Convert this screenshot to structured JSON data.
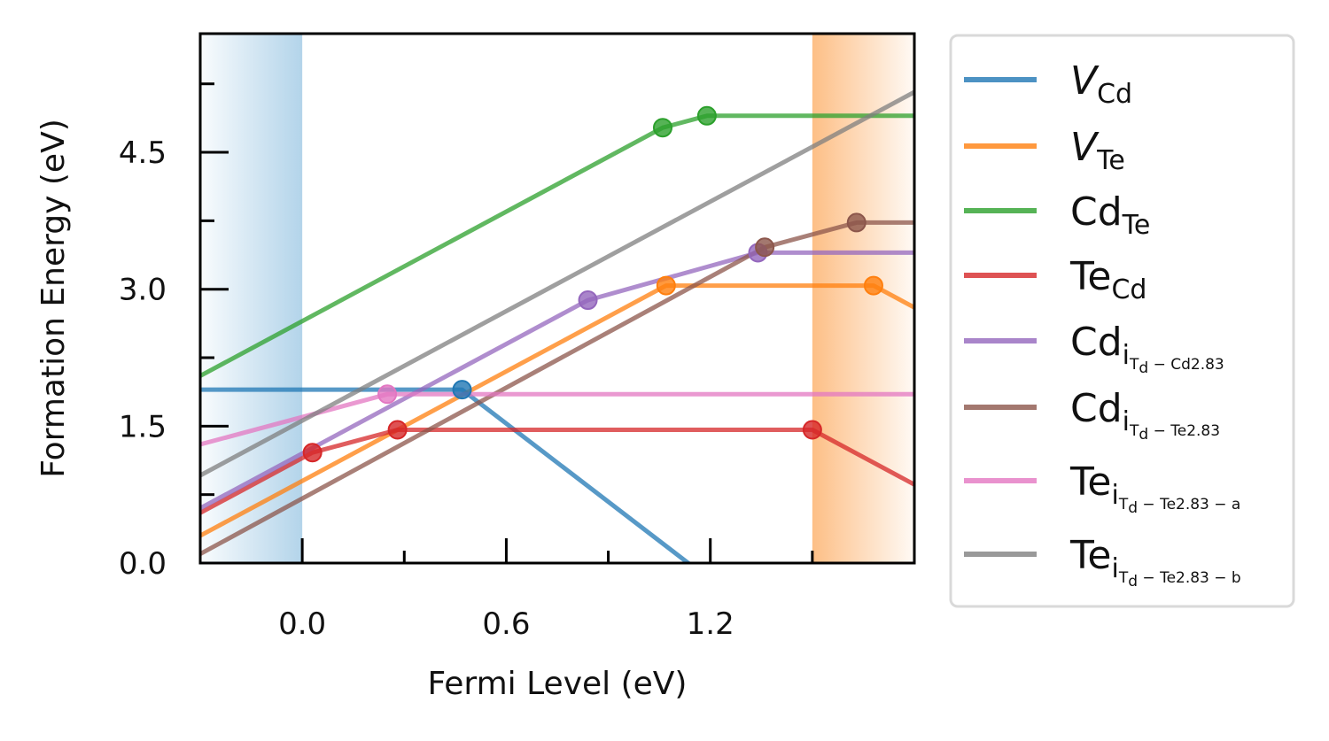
{
  "chart_data": {
    "type": "line",
    "xlabel": "Fermi Level (eV)",
    "ylabel": "Formation Energy (eV)",
    "xlim": [
      -0.3,
      1.8
    ],
    "ylim": [
      0.0,
      5.8
    ],
    "x_ticks": [
      {
        "value": 0.0,
        "label": "0.0"
      },
      {
        "value": 0.6,
        "label": "0.6"
      },
      {
        "value": 1.2,
        "label": "1.2"
      }
    ],
    "x_minor_ticks": [
      0.3,
      0.9,
      1.5
    ],
    "y_ticks": [
      {
        "value": 0.0,
        "label": "0.0"
      },
      {
        "value": 1.5,
        "label": "1.5"
      },
      {
        "value": 3.0,
        "label": "3.0"
      },
      {
        "value": 4.5,
        "label": "4.5"
      }
    ],
    "y_minor_ticks": [
      0.75,
      2.25,
      3.75,
      5.25
    ],
    "shaded_regions": [
      {
        "name": "valence-band",
        "x": [
          -0.3,
          0.0
        ],
        "color": "#b3d4ea",
        "fade": "left"
      },
      {
        "name": "conduction-band",
        "x": [
          1.5,
          1.8
        ],
        "color": "#fdbf86",
        "fade": "right"
      }
    ],
    "legend_position": "outside-right",
    "series": [
      {
        "name": {
          "main": "V",
          "italic": true,
          "sub": "Cd"
        },
        "color": "#1f77b4",
        "points": [
          [
            -0.3,
            1.9
          ],
          [
            0.47,
            1.9
          ],
          [
            1.8,
            -1.9
          ]
        ],
        "markers": [
          [
            0.47,
            1.9
          ]
        ]
      },
      {
        "name": {
          "main": "V",
          "italic": true,
          "sub": "Te"
        },
        "color": "#ff7f0e",
        "points": [
          [
            -0.3,
            0.3
          ],
          [
            1.07,
            3.04
          ],
          [
            1.68,
            3.04
          ],
          [
            1.8,
            2.8
          ]
        ],
        "markers": [
          [
            1.07,
            3.04
          ],
          [
            1.68,
            3.04
          ]
        ]
      },
      {
        "name": {
          "main": "Cd",
          "sub": "Te"
        },
        "color": "#2ca02c",
        "points": [
          [
            -0.3,
            2.05
          ],
          [
            1.06,
            4.77
          ],
          [
            1.19,
            4.9
          ],
          [
            1.8,
            4.9
          ]
        ],
        "markers": [
          [
            1.06,
            4.77
          ],
          [
            1.19,
            4.9
          ]
        ]
      },
      {
        "name": {
          "main": "Te",
          "sub": "Cd"
        },
        "color": "#d62728",
        "points": [
          [
            -0.3,
            0.55
          ],
          [
            0.03,
            1.21
          ],
          [
            0.28,
            1.46
          ],
          [
            1.5,
            1.46
          ],
          [
            1.8,
            0.86
          ]
        ],
        "markers": [
          [
            0.03,
            1.21
          ],
          [
            0.28,
            1.46
          ],
          [
            1.5,
            1.46
          ]
        ]
      },
      {
        "name": {
          "main": "Cd",
          "sub": "i",
          "sub2": "T",
          "sub3": "d",
          "tail": " − Cd2.83"
        },
        "color": "#9467bd",
        "points": [
          [
            -0.3,
            0.6
          ],
          [
            0.84,
            2.88
          ],
          [
            1.34,
            3.4
          ],
          [
            1.8,
            3.4
          ]
        ],
        "markers": [
          [
            0.84,
            2.88
          ],
          [
            1.34,
            3.4
          ]
        ]
      },
      {
        "name": {
          "main": "Cd",
          "sub": "i",
          "sub2": "T",
          "sub3": "d",
          "tail": " − Te2.83"
        },
        "color": "#8c564b",
        "points": [
          [
            -0.3,
            0.1
          ],
          [
            1.36,
            3.46
          ],
          [
            1.63,
            3.73
          ],
          [
            1.8,
            3.73
          ]
        ],
        "markers": [
          [
            1.36,
            3.46
          ],
          [
            1.63,
            3.73
          ]
        ]
      },
      {
        "name": {
          "main": "Te",
          "sub": "i",
          "sub2": "T",
          "sub3": "d",
          "tail": " − Te2.83 − a"
        },
        "color": "#e377c2",
        "points": [
          [
            -0.3,
            1.3
          ],
          [
            0.25,
            1.85
          ],
          [
            1.8,
            1.85
          ]
        ],
        "markers": [
          [
            0.25,
            1.85
          ]
        ]
      },
      {
        "name": {
          "main": "Te",
          "sub": "i",
          "sub2": "T",
          "sub3": "d",
          "tail": " − Te2.83 − b"
        },
        "color": "#7f7f7f",
        "points": [
          [
            -0.3,
            0.96
          ],
          [
            1.8,
            5.16
          ]
        ],
        "markers": []
      }
    ]
  }
}
